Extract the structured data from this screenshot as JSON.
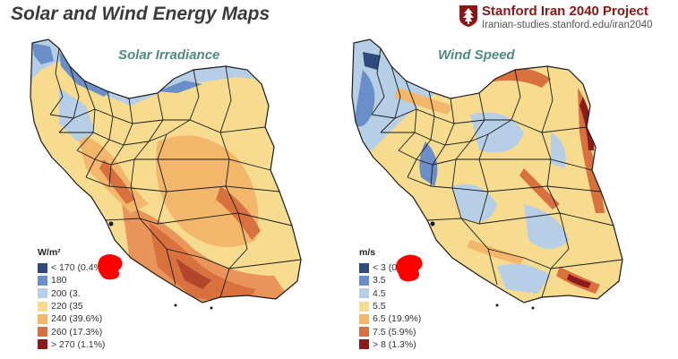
{
  "page_title": "Solar and Wind Energy Maps",
  "brand": {
    "name": "Stanford Iran 2040 Project",
    "url": "Iranian-studies.stanford.edu/iran2040",
    "logo_icon": "stanford-tree-logo-icon",
    "color": "#8c1515"
  },
  "solar_map": {
    "title": "Solar Irradiance",
    "legend_unit": "W/m²",
    "legend": [
      {
        "label": "< 170 (0.4%)",
        "color": "#2f4b7c"
      },
      {
        "label": "180",
        "color": "#6a8fc8"
      },
      {
        "label": "200 (3.",
        "color": "#b7cfe6"
      },
      {
        "label": "220 (35",
        "color": "#f7dc8f"
      },
      {
        "label": "240 (39.6%)",
        "color": "#f2b76a"
      },
      {
        "label": "260 (17.3%)",
        "color": "#d9713f"
      },
      {
        "label": "> 270 (1.1%)",
        "color": "#8c1a1a"
      }
    ]
  },
  "wind_map": {
    "title": "Wind Speed",
    "legend_unit": "m/s",
    "legend": [
      {
        "label": "< 3  (0.3%)",
        "color": "#2f4b7c"
      },
      {
        "label": "3.5",
        "color": "#6a8fc8"
      },
      {
        "label": "4.5",
        "color": "#b7cfe6"
      },
      {
        "label": "5.5",
        "color": "#f7dc8f"
      },
      {
        "label": "6.5  (19.9%)",
        "color": "#f2b76a"
      },
      {
        "label": "7.5  (5.9%)",
        "color": "#d9713f"
      },
      {
        "label": "> 8  (1.3%)",
        "color": "#8c1a1a"
      }
    ]
  },
  "colors": {
    "title_teal": "#4f8a7e",
    "redaction_red": "#ff0000",
    "border": "#1a1a1a"
  }
}
